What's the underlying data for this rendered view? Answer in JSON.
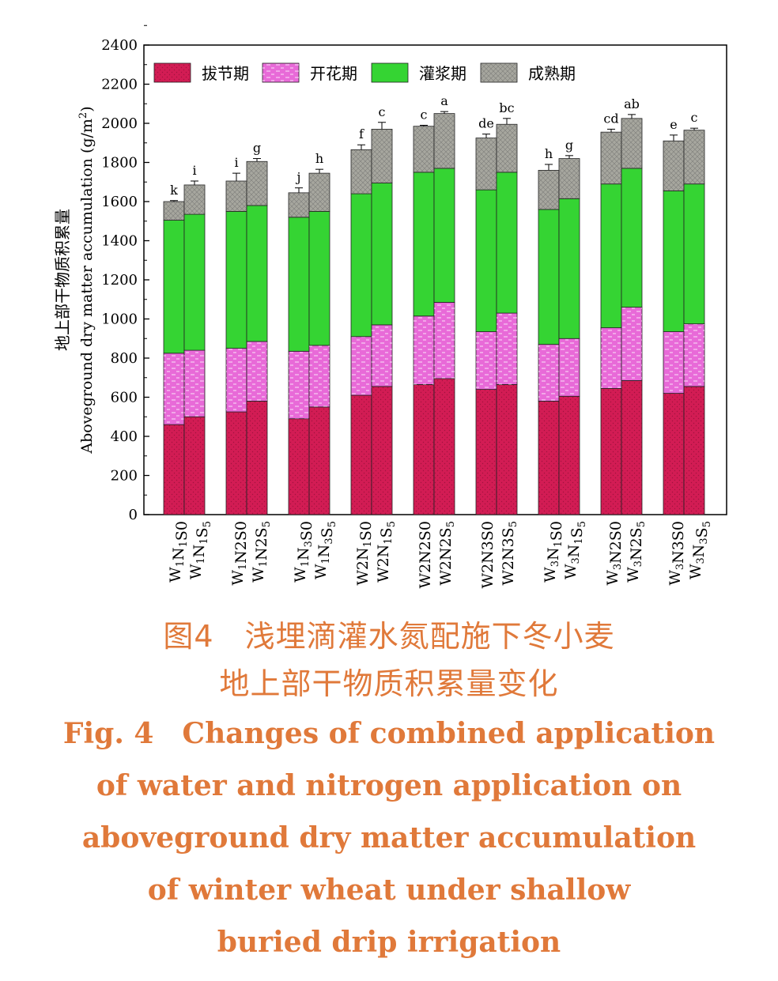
{
  "chart_data": {
    "type": "bar",
    "stacked": true,
    "ylabel_cn": "地上部干物质积累量",
    "ylabel_en": "Aboveground dry matter accumulation (g/m",
    "ylabel_unit_sup": "2",
    "ylabel_close": ")",
    "ylim": [
      0,
      2400
    ],
    "yticks": [
      0,
      200,
      400,
      600,
      800,
      1000,
      1200,
      1400,
      1600,
      1800,
      2000,
      2200,
      2400
    ],
    "grid": false,
    "legend_position": "top-left",
    "categories": [
      {
        "w": "W",
        "w_sub": "1",
        "n": "N",
        "n_sub": "1",
        "s": "S0",
        "s_sub": ""
      },
      {
        "w": "W",
        "w_sub": "1",
        "n": "N",
        "n_sub": "1",
        "s": "S",
        "s_sub": "5"
      },
      {
        "w": "W",
        "w_sub": "1",
        "n": "N2",
        "n_sub": "",
        "s": "S0",
        "s_sub": ""
      },
      {
        "w": "W",
        "w_sub": "1",
        "n": "N2",
        "n_sub": "",
        "s": "S",
        "s_sub": "5"
      },
      {
        "w": "W",
        "w_sub": "1",
        "n": "N",
        "n_sub": "3",
        "s": "S0",
        "s_sub": ""
      },
      {
        "w": "W",
        "w_sub": "1",
        "n": "N",
        "n_sub": "3",
        "s": "S",
        "s_sub": "5"
      },
      {
        "w": "W2",
        "w_sub": "",
        "n": "N",
        "n_sub": "1",
        "s": "S0",
        "s_sub": ""
      },
      {
        "w": "W2",
        "w_sub": "",
        "n": "N",
        "n_sub": "1",
        "s": "S",
        "s_sub": "5"
      },
      {
        "w": "W2",
        "w_sub": "",
        "n": "N2",
        "n_sub": "",
        "s": "S0",
        "s_sub": ""
      },
      {
        "w": "W2",
        "w_sub": "",
        "n": "N2",
        "n_sub": "",
        "s": "S",
        "s_sub": "5"
      },
      {
        "w": "W2",
        "w_sub": "",
        "n": "N3",
        "n_sub": "",
        "s": "S0",
        "s_sub": ""
      },
      {
        "w": "W2",
        "w_sub": "",
        "n": "N3",
        "n_sub": "",
        "s": "S",
        "s_sub": "5"
      },
      {
        "w": "W",
        "w_sub": "3",
        "n": "N",
        "n_sub": "1",
        "s": "S0",
        "s_sub": ""
      },
      {
        "w": "W",
        "w_sub": "3",
        "n": "N",
        "n_sub": "1",
        "s": "S",
        "s_sub": "5"
      },
      {
        "w": "W",
        "w_sub": "3",
        "n": "N2",
        "n_sub": "",
        "s": "S0",
        "s_sub": ""
      },
      {
        "w": "W",
        "w_sub": "3",
        "n": "N2",
        "n_sub": "",
        "s": "S",
        "s_sub": "5"
      },
      {
        "w": "W",
        "w_sub": "3",
        "n": "N3",
        "n_sub": "",
        "s": "S0",
        "s_sub": ""
      },
      {
        "w": "W",
        "w_sub": "3",
        "n": "N",
        "n_sub": "3",
        "s": "S",
        "s_sub": "5"
      }
    ],
    "series": [
      {
        "name": "拔节期",
        "color": "#d21c54",
        "values": [
          460,
          500,
          525,
          580,
          490,
          550,
          610,
          655,
          665,
          695,
          640,
          665,
          580,
          605,
          645,
          685,
          620,
          655
        ]
      },
      {
        "name": "开花期",
        "color": "#e86ad8",
        "values": [
          365,
          340,
          325,
          305,
          345,
          315,
          300,
          315,
          350,
          390,
          295,
          365,
          290,
          295,
          310,
          375,
          315,
          320
        ]
      },
      {
        "name": "灌浆期",
        "color": "#35d433",
        "values": [
          680,
          695,
          700,
          695,
          685,
          685,
          730,
          725,
          735,
          685,
          725,
          720,
          690,
          715,
          735,
          710,
          720,
          715
        ]
      },
      {
        "name": "成熟期",
        "color": "#a6a69e",
        "values": [
          95,
          150,
          155,
          225,
          125,
          195,
          225,
          275,
          235,
          280,
          265,
          245,
          200,
          205,
          265,
          255,
          255,
          275
        ]
      }
    ],
    "totals": [
      1600,
      1685,
      1705,
      1805,
      1645,
      1745,
      1865,
      1970,
      1985,
      2050,
      1925,
      1995,
      1760,
      1820,
      1955,
      2025,
      1910,
      1965
    ],
    "error_bars": [
      5,
      20,
      40,
      15,
      25,
      20,
      25,
      35,
      5,
      10,
      20,
      30,
      30,
      15,
      15,
      20,
      30,
      10
    ],
    "significance_letters": [
      "k",
      "i",
      "i",
      "g",
      "j",
      "h",
      "f",
      "c",
      "c",
      "a",
      "de",
      "bc",
      "h",
      "g",
      "cd",
      "ab",
      "e",
      "c"
    ]
  },
  "caption": {
    "cn_line1": "图4　浅埋滴灌水氮配施下冬小麦",
    "cn_line2": "地上部干物质积累量变化",
    "en_lines": [
      "Fig. 4　Changes of combined application",
      "of water and nitrogen application on",
      "aboveground dry matter accumulation",
      "of winter wheat under shallow",
      "buried drip irrigation"
    ]
  }
}
